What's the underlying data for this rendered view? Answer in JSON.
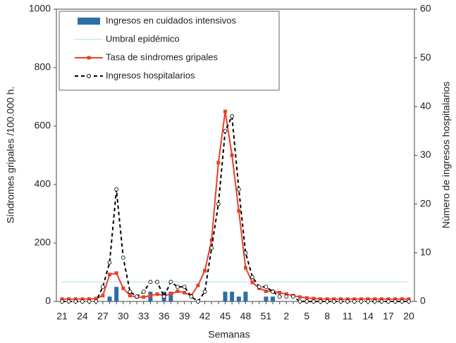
{
  "chart_data": {
    "type": "combo",
    "xlabel": "Semanas",
    "ylabel": "Síndromes gripales /100.000 h.",
    "y2label": "Número de ingresos hospitalarios",
    "categories": [
      "21",
      null,
      null,
      "24",
      null,
      null,
      "27",
      null,
      null,
      "30",
      null,
      null,
      "33",
      null,
      null,
      "36",
      null,
      null,
      "39",
      null,
      null,
      "42",
      null,
      null,
      "45",
      null,
      null,
      "48",
      null,
      null,
      "51",
      null,
      null,
      "2",
      null,
      null,
      "5",
      null,
      null,
      "8",
      null,
      null,
      "11",
      null,
      null,
      "14",
      null,
      null,
      "17",
      null,
      null,
      "20"
    ],
    "ylim": [
      0,
      1000
    ],
    "yticks": [
      0,
      200,
      400,
      600,
      800,
      1000
    ],
    "y2lim": [
      0,
      60
    ],
    "y2ticks": [
      0,
      10,
      20,
      30,
      40,
      50,
      60
    ],
    "series": [
      {
        "name": "Ingresos en cuidados intensivos",
        "kind": "bar",
        "axis": "y2",
        "color": "#2e6ea6",
        "values": [
          0,
          0,
          0,
          0,
          0,
          0,
          0,
          1,
          3,
          0,
          0,
          0,
          0,
          2,
          0,
          2,
          2,
          0,
          0,
          0,
          0,
          0,
          0,
          0,
          2,
          2,
          1,
          2,
          0,
          0,
          1,
          1,
          0,
          0,
          0,
          0,
          0,
          0,
          0,
          0,
          0,
          0,
          0,
          0,
          0,
          0,
          0,
          0,
          0,
          0,
          0,
          0
        ]
      },
      {
        "name": "Umbral epidémico",
        "kind": "line",
        "color": "#a8dfe8",
        "marker": "none",
        "dash": false,
        "values": [
          67,
          67,
          67,
          67,
          67,
          67,
          67,
          67,
          67,
          67,
          67,
          67,
          67,
          67,
          67,
          67,
          67,
          67,
          67,
          67,
          67,
          67,
          67,
          67,
          67,
          67,
          67,
          67,
          67,
          67,
          67,
          67,
          67,
          67,
          67,
          67,
          67,
          67,
          67,
          67,
          67,
          67,
          67,
          67,
          67,
          67,
          67,
          67,
          67,
          67,
          67,
          67
        ]
      },
      {
        "name": "Tasa de síndromes gripales",
        "kind": "line",
        "color": "#e8402a",
        "marker": "square",
        "dash": false,
        "values": [
          8,
          8,
          8,
          8,
          8,
          10,
          20,
          92,
          97,
          45,
          20,
          15,
          15,
          20,
          25,
          20,
          25,
          35,
          30,
          20,
          55,
          105,
          210,
          475,
          650,
          500,
          310,
          115,
          65,
          45,
          35,
          35,
          30,
          25,
          20,
          15,
          12,
          10,
          8,
          8,
          8,
          8,
          8,
          8,
          8,
          8,
          8,
          8,
          8,
          8,
          8,
          8
        ]
      },
      {
        "name": "Ingresos hospitalarios",
        "kind": "line",
        "axis": "y2",
        "color": "#000000",
        "marker": "circle",
        "dash": true,
        "values": [
          0,
          0,
          0,
          0,
          0,
          0,
          3,
          8,
          23,
          9,
          2,
          1,
          2,
          4,
          4,
          1,
          4,
          3,
          3,
          1,
          0,
          2,
          11,
          20,
          35,
          38,
          23,
          10,
          5,
          3,
          3,
          2,
          1,
          1,
          1,
          0,
          0,
          0,
          0,
          0,
          0,
          0,
          0,
          0,
          0,
          0,
          0,
          0,
          0,
          0,
          0,
          0
        ]
      }
    ]
  }
}
